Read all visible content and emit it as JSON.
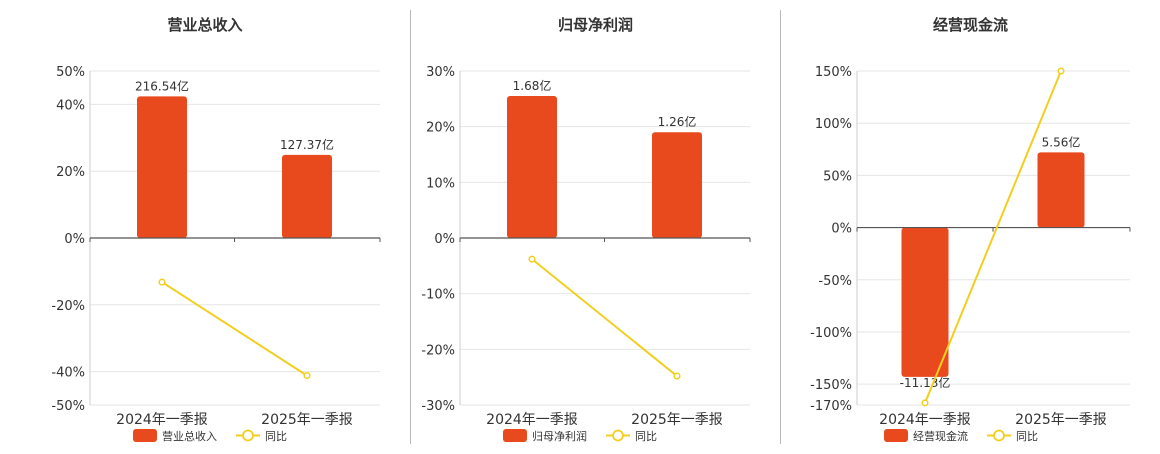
{
  "colors": {
    "bar": "#E8491D",
    "line": "#F2CF1F",
    "grid": "#e6e6e6",
    "axis": "#555555",
    "text": "#333333"
  },
  "chart_data": [
    {
      "type": "bar",
      "title": "营业总收入",
      "categories": [
        "2024年一季报",
        "2025年一季报"
      ],
      "y_ticks": [
        "50%",
        "40%",
        "20%",
        "0%",
        "-20%",
        "-40%",
        "-50%"
      ],
      "ylim": [
        -50,
        50
      ],
      "series": [
        {
          "name": "营业总收入",
          "kind": "bar",
          "values": [
            42.4,
            24.9
          ],
          "labels": [
            "216.54亿",
            "127.37亿"
          ]
        },
        {
          "name": "同比",
          "kind": "line",
          "values": [
            -13.2,
            -41.2
          ]
        }
      ],
      "legend": [
        "营业总收入",
        "同比"
      ],
      "legend_position": "bottom"
    },
    {
      "type": "bar",
      "title": "归母净利润",
      "categories": [
        "2024年一季报",
        "2025年一季报"
      ],
      "y_ticks": [
        "30%",
        "20%",
        "10%",
        "0%",
        "-10%",
        "-20%",
        "-30%"
      ],
      "ylim": [
        -30,
        30
      ],
      "series": [
        {
          "name": "归母净利润",
          "kind": "bar",
          "values": [
            25.5,
            19.0
          ],
          "labels": [
            "1.68亿",
            "1.26亿"
          ]
        },
        {
          "name": "同比",
          "kind": "line",
          "values": [
            -3.8,
            -24.8
          ]
        }
      ],
      "legend": [
        "归母净利润",
        "同比"
      ],
      "legend_position": "bottom"
    },
    {
      "type": "bar",
      "title": "经营现金流",
      "categories": [
        "2024年一季报",
        "2025年一季报"
      ],
      "y_ticks": [
        "150%",
        "100%",
        "50%",
        "0%",
        "-50%",
        "-100%",
        "-150%",
        "-170%"
      ],
      "ylim": [
        -170,
        150
      ],
      "series": [
        {
          "name": "经营现金流",
          "kind": "bar",
          "values": [
            -143,
            72
          ],
          "labels": [
            "-11.13亿",
            "5.56亿"
          ]
        },
        {
          "name": "同比",
          "kind": "line",
          "values": [
            -168,
            150
          ]
        }
      ],
      "legend": [
        "经营现金流",
        "同比"
      ],
      "legend_position": "bottom"
    }
  ]
}
